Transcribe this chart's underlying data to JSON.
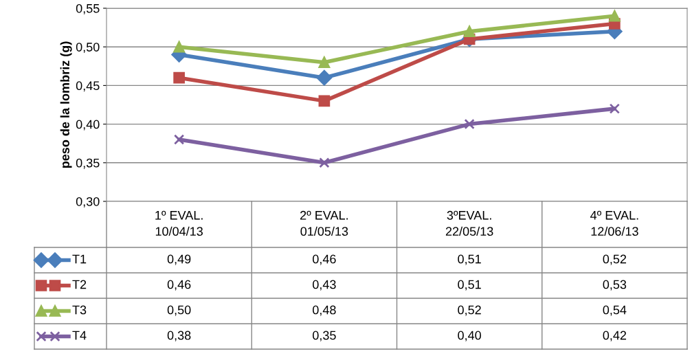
{
  "chart_data": {
    "type": "line",
    "ylabel": "peso de la lombriz (g)",
    "categories": [
      "1º EVAL.\n10/04/13",
      "2º EVAL.\n01/05/13",
      "3ºEVAL.\n22/05/13",
      "4º EVAL.\n12/06/13"
    ],
    "series": [
      {
        "name": "T1",
        "color": "#4a7ebb",
        "marker": "diamond",
        "values": [
          0.49,
          0.46,
          0.51,
          0.52
        ],
        "value_labels": [
          "0,49",
          "0,46",
          "0,51",
          "0,52"
        ]
      },
      {
        "name": "T2",
        "color": "#be4b48",
        "marker": "square",
        "values": [
          0.46,
          0.43,
          0.51,
          0.53
        ],
        "value_labels": [
          "0,46",
          "0,43",
          "0,51",
          "0,53"
        ]
      },
      {
        "name": "T3",
        "color": "#98b954",
        "marker": "triangle",
        "values": [
          0.5,
          0.48,
          0.52,
          0.54
        ],
        "value_labels": [
          "0,50",
          "0,48",
          "0,52",
          "0,54"
        ]
      },
      {
        "name": "T4",
        "color": "#7d60a0",
        "marker": "cross",
        "values": [
          0.38,
          0.35,
          0.4,
          0.42
        ],
        "value_labels": [
          "0,38",
          "0,35",
          "0,40",
          "0,42"
        ]
      }
    ],
    "ylim": [
      0.3,
      0.55
    ],
    "yticks": [
      {
        "value": 0.3,
        "label": "0,30"
      },
      {
        "value": 0.35,
        "label": "0,35"
      },
      {
        "value": 0.4,
        "label": "0,40"
      },
      {
        "value": 0.45,
        "label": "0,45"
      },
      {
        "value": 0.5,
        "label": "0,50"
      },
      {
        "value": 0.55,
        "label": "0,55"
      }
    ],
    "grid": "y",
    "legend": "bottom left",
    "line_style": "solid"
  }
}
